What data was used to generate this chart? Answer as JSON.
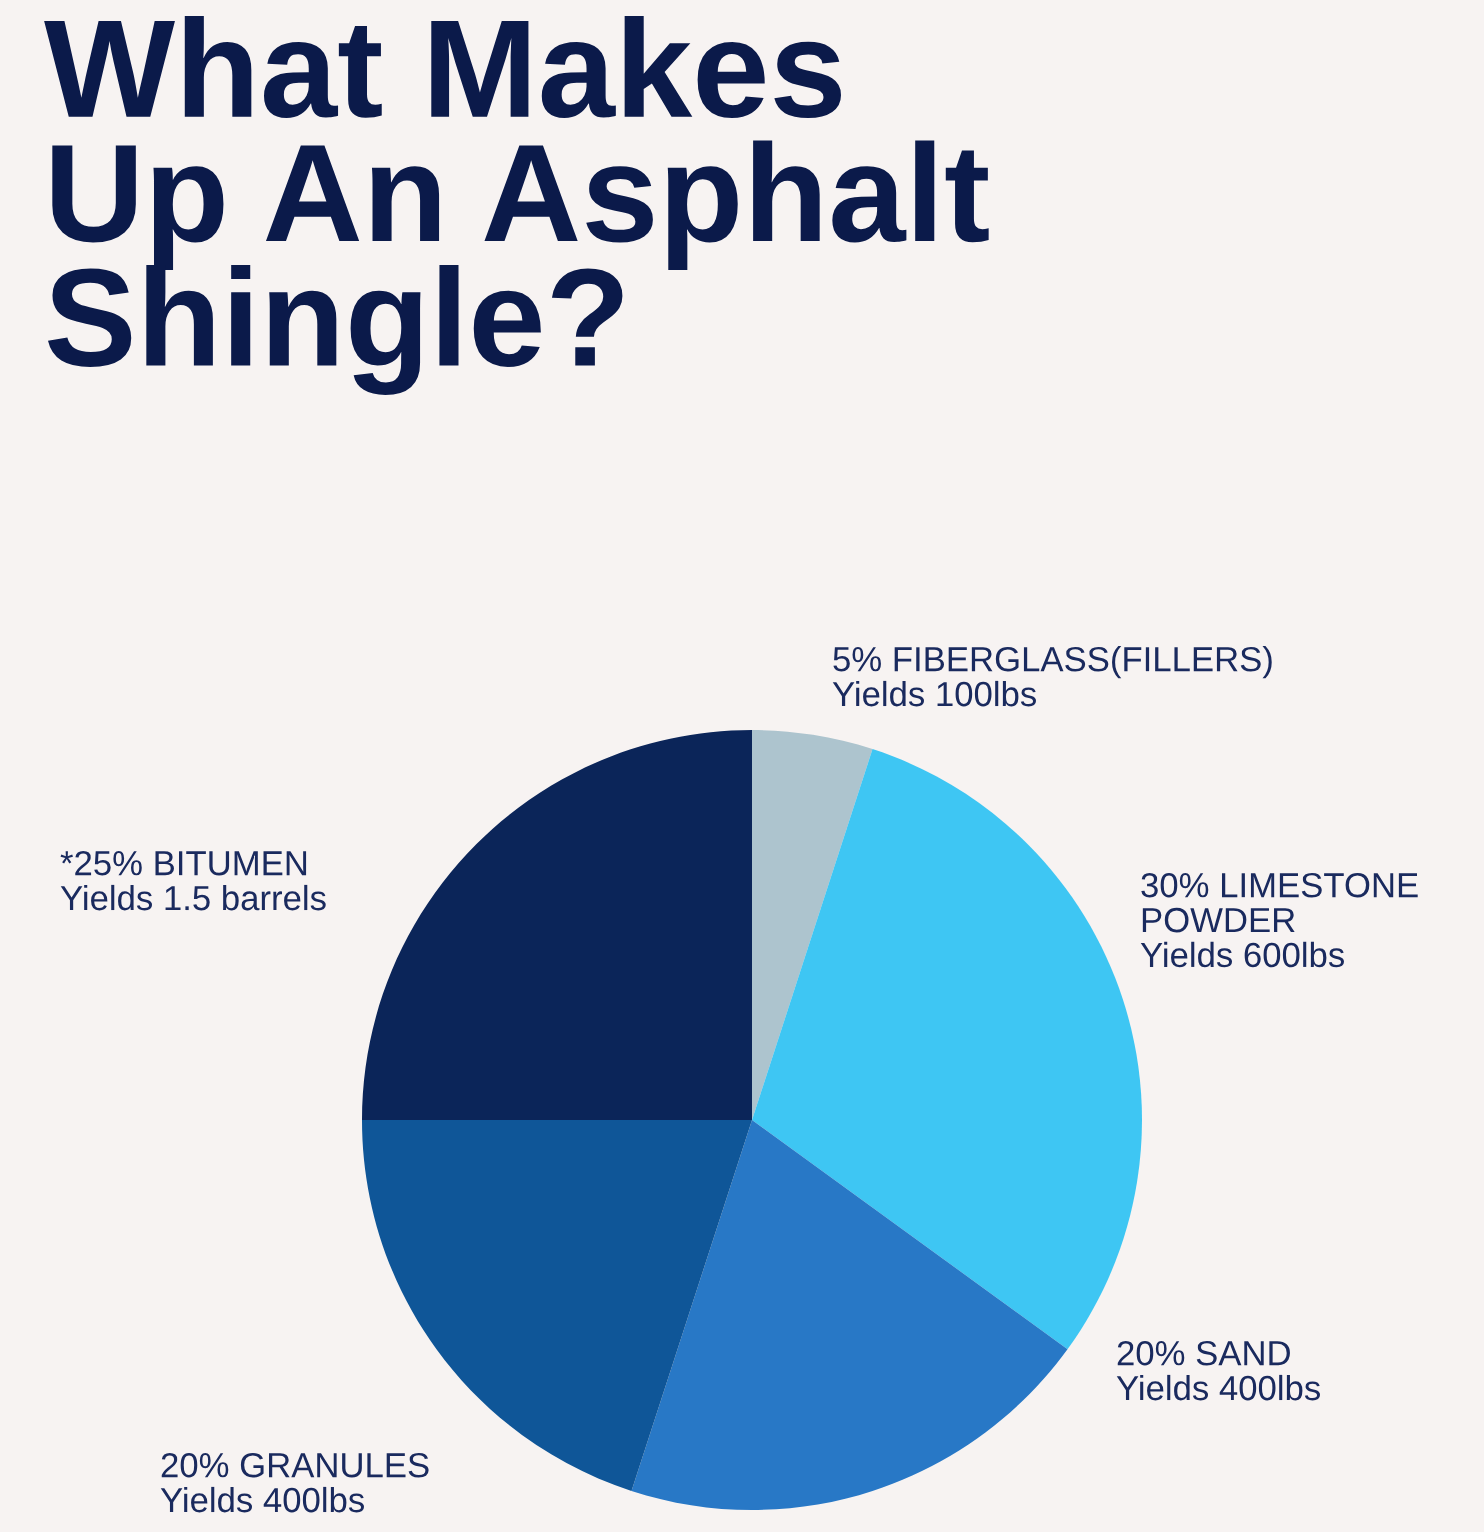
{
  "chart_data": {
    "type": "pie",
    "title": "What Makes\nUp An Asphalt\nShingle?",
    "categories": [
      "5% FIBERGLASS(FILLERS)\nYields 100lbs",
      "30% LIMESTONE\nPOWDER\nYields 600lbs",
      "20% SAND\nYields 400lbs",
      "20% GRANULES\nYields 400lbs",
      "*25% BITUMEN\nYields 1.5 barrels"
    ],
    "values": [
      5,
      30,
      20,
      20,
      25
    ],
    "colors": [
      "#adc4ce",
      "#3ec6f3",
      "#2878c6",
      "#0f5698",
      "#0b2559"
    ]
  }
}
